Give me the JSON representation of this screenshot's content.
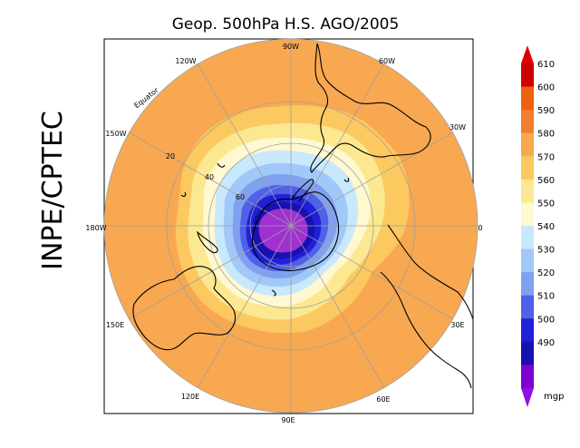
{
  "title": "Geop. 500hPa H.S. AGO/2005",
  "side_label": "INPE/CPTEC",
  "longitude_labels": {
    "top": "90W",
    "upper_left": "120W",
    "upper_right": "60W",
    "left_upper": "150W",
    "right_upper": "30W",
    "left": "180W",
    "right": "0",
    "left_lower": "150E",
    "right_lower": "30E",
    "lower_left": "120E",
    "lower_right": "60E",
    "bottom": "90E"
  },
  "latitude_labels": [
    "Equator",
    "20",
    "40",
    "60"
  ],
  "colorbar": {
    "levels": [
      "610",
      "600",
      "590",
      "580",
      "570",
      "560",
      "550",
      "540",
      "530",
      "520",
      "510",
      "500",
      "490"
    ],
    "colors": [
      "#d00000",
      "#f06010",
      "#f08030",
      "#f8a850",
      "#fcc860",
      "#fce890",
      "#fff8d0",
      "#c8e8fc",
      "#a0c8f8",
      "#80a0f0",
      "#5060e8",
      "#2020d8",
      "#1810b0",
      "#8000d0"
    ],
    "top_color": "#e00000",
    "bottom_color": "#9010e0",
    "unit": "mgp"
  },
  "map": {
    "outer_color": "#f8a850",
    "contour_colors": [
      "#fcc860",
      "#fce890",
      "#fff8d0",
      "#c8e8fc",
      "#a0c8f8",
      "#80a0f0",
      "#5060e8",
      "#2020d8",
      "#1810b0",
      "#a030d0"
    ]
  }
}
